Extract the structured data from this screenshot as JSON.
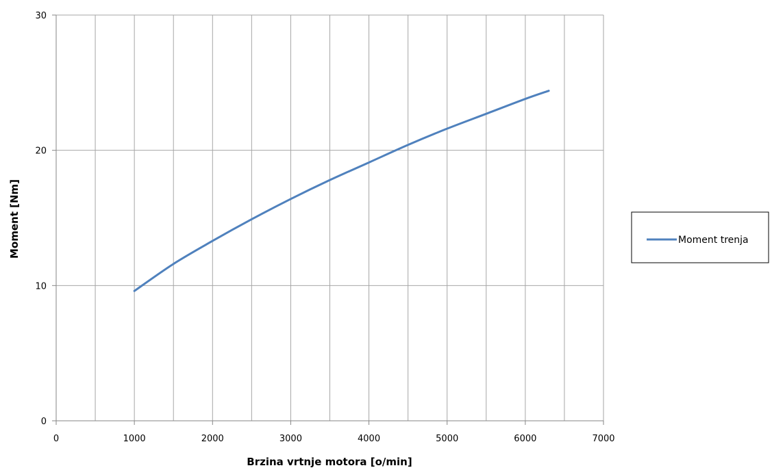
{
  "chart_data": {
    "type": "line",
    "xlabel": "Brzina  vrtnje motora [o/min]",
    "ylabel": "Moment [Nm]",
    "xlim": [
      0,
      7000
    ],
    "ylim": [
      0,
      30
    ],
    "x_ticks": [
      0,
      1000,
      2000,
      3000,
      4000,
      5000,
      6000,
      7000
    ],
    "y_ticks": [
      0,
      10,
      20,
      30
    ],
    "x_minor_grid_step": 500,
    "grid": true,
    "legend_position": "right",
    "series": [
      {
        "name": "Moment trenja",
        "color": "#4f81bd",
        "x": [
          1000,
          1500,
          2000,
          2500,
          3000,
          3500,
          4000,
          4500,
          5000,
          5500,
          6000,
          6300
        ],
        "y": [
          9.6,
          11.6,
          13.3,
          14.9,
          16.4,
          17.8,
          19.1,
          20.4,
          21.6,
          22.7,
          23.8,
          24.4
        ]
      }
    ]
  }
}
